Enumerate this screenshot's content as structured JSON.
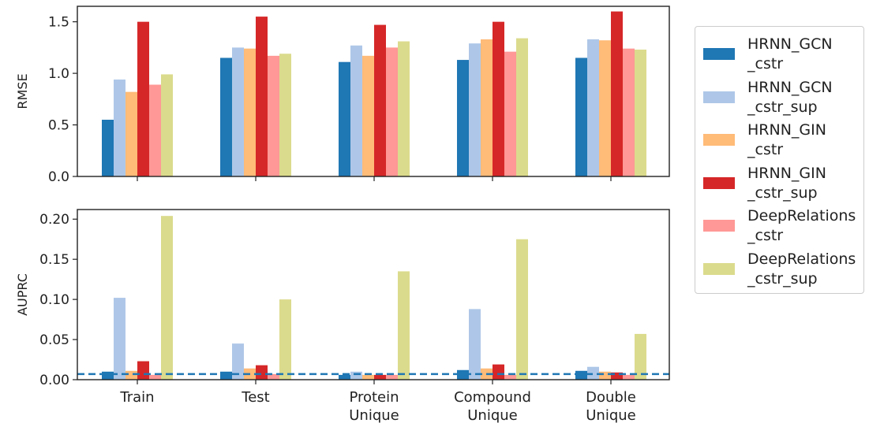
{
  "chart_data": {
    "type": "bar",
    "categories": [
      [
        "Train"
      ],
      [
        "Test"
      ],
      [
        "Protein",
        "Unique"
      ],
      [
        "Compound",
        "Unique"
      ],
      [
        "Double",
        "Unique"
      ]
    ],
    "series": [
      {
        "name": [
          "HRNN_GCN",
          "_cstr"
        ],
        "color": "#1f77b4"
      },
      {
        "name": [
          "HRNN_GCN",
          "_cstr_sup"
        ],
        "color": "#aec7e8"
      },
      {
        "name": [
          "HRNN_GIN",
          "_cstr"
        ],
        "color": "#ffbb78"
      },
      {
        "name": [
          "HRNN_GIN",
          "_cstr_sup"
        ],
        "color": "#d62728"
      },
      {
        "name": [
          "DeepRelations",
          "_cstr"
        ],
        "color": "#ff9896"
      },
      {
        "name": [
          "DeepRelations",
          "_cstr_sup"
        ],
        "color": "#dbdb8d"
      }
    ],
    "panels": [
      {
        "ylabel": "RMSE",
        "ylim": [
          0,
          1.65
        ],
        "yticks": [
          0.0,
          0.5,
          1.0,
          1.5
        ],
        "ytick_labels": [
          "0.0",
          "0.5",
          "1.0",
          "1.5"
        ],
        "values": [
          [
            0.55,
            0.94,
            0.82,
            1.5,
            0.89,
            0.99
          ],
          [
            1.15,
            1.25,
            1.24,
            1.55,
            1.17,
            1.19
          ],
          [
            1.11,
            1.27,
            1.17,
            1.47,
            1.25,
            1.31
          ],
          [
            1.13,
            1.29,
            1.33,
            1.5,
            1.21,
            1.34
          ],
          [
            1.15,
            1.33,
            1.32,
            1.6,
            1.24,
            1.23
          ]
        ]
      },
      {
        "ylabel": "AUPRC",
        "ylim": [
          0,
          0.212
        ],
        "yticks": [
          0.0,
          0.05,
          0.1,
          0.15,
          0.2
        ],
        "ytick_labels": [
          "0.00",
          "0.05",
          "0.10",
          "0.15",
          "0.20"
        ],
        "baseline": 0.007,
        "baseline_color": "#1f77b4",
        "values": [
          [
            0.01,
            0.102,
            0.011,
            0.023,
            0.006,
            0.204
          ],
          [
            0.01,
            0.045,
            0.014,
            0.018,
            0.007,
            0.1
          ],
          [
            0.006,
            0.01,
            0.006,
            0.006,
            0.006,
            0.135
          ],
          [
            0.012,
            0.088,
            0.014,
            0.019,
            0.006,
            0.175
          ],
          [
            0.011,
            0.016,
            0.01,
            0.009,
            0.006,
            0.057
          ]
        ]
      }
    ],
    "legend_position": "right"
  }
}
